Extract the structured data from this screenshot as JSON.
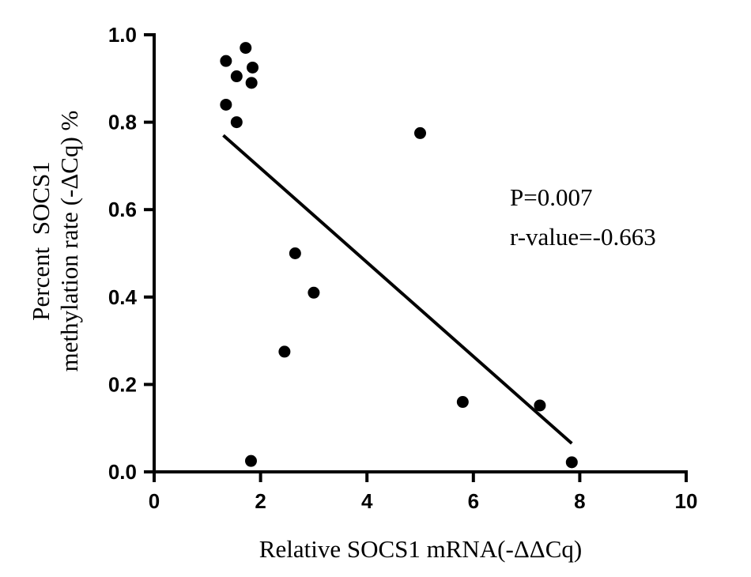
{
  "chart_data": {
    "type": "scatter",
    "title": "",
    "xlabel": "Relative SOCS1 mRNA(-ΔΔCq)",
    "ylabel_lines": [
      "Percent  SOCS1",
      "methylation rate (-ΔCq) %"
    ],
    "xlim": [
      0,
      10
    ],
    "ylim": [
      0,
      1.0
    ],
    "x_ticks": [
      "0",
      "2",
      "4",
      "6",
      "8",
      "10"
    ],
    "y_ticks": [
      "0.0",
      "0.2",
      "0.4",
      "0.6",
      "0.8",
      "1.0"
    ],
    "grid": false,
    "points": [
      {
        "x": 1.35,
        "y": 0.94
      },
      {
        "x": 1.35,
        "y": 0.84
      },
      {
        "x": 1.55,
        "y": 0.905
      },
      {
        "x": 1.55,
        "y": 0.8
      },
      {
        "x": 1.72,
        "y": 0.97
      },
      {
        "x": 1.83,
        "y": 0.89
      },
      {
        "x": 1.85,
        "y": 0.925
      },
      {
        "x": 1.82,
        "y": 0.025
      },
      {
        "x": 2.45,
        "y": 0.275
      },
      {
        "x": 2.65,
        "y": 0.5
      },
      {
        "x": 3.0,
        "y": 0.41
      },
      {
        "x": 5.0,
        "y": 0.775
      },
      {
        "x": 5.8,
        "y": 0.16
      },
      {
        "x": 7.25,
        "y": 0.152
      },
      {
        "x": 7.85,
        "y": 0.022
      }
    ],
    "regression_line": {
      "x": [
        1.3,
        7.85
      ],
      "y": [
        0.77,
        0.065
      ]
    },
    "annotations": [
      "P=0.007",
      "r-value=-0.663"
    ],
    "marker_color": "#000000",
    "line_color": "#000000"
  }
}
